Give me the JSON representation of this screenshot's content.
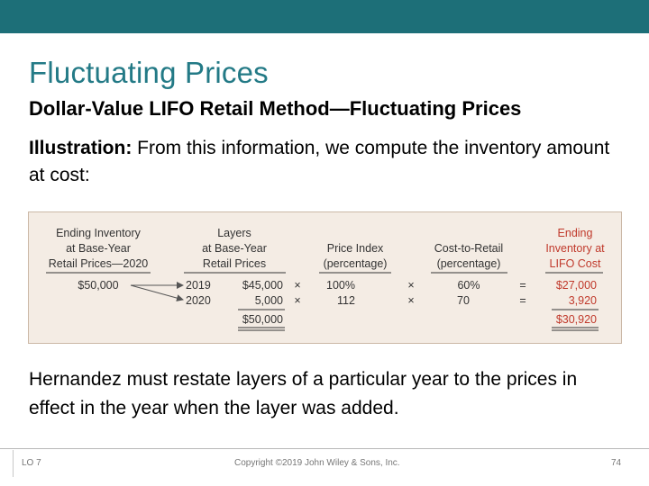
{
  "slide": {
    "title": "Fluctuating Prices",
    "subtitle": "Dollar-Value LIFO Retail Method—Fluctuating Prices",
    "intro_label": "Illustration:",
    "intro_text": " From this information, we compute the inventory amount at cost:",
    "conclusion": "Hernandez must restate layers of a particular year to the prices in effect in the year when the layer was added."
  },
  "table": {
    "headers": {
      "ending_inventory": [
        "Ending Inventory",
        "at Base-Year",
        "Retail Prices—2020"
      ],
      "layers": [
        "Layers",
        "at Base-Year",
        "Retail Prices"
      ],
      "price_index": [
        "Price Index",
        "(percentage)"
      ],
      "cost_to_retail": [
        "Cost-to-Retail",
        "(percentage)"
      ],
      "ending_lifo": [
        "Ending",
        "Inventory at",
        "LIFO Cost"
      ]
    },
    "ending_inventory_value": "$50,000",
    "rows": [
      {
        "year": "2019",
        "layer": "$45,000",
        "times1": "×",
        "index": "100%",
        "times2": "×",
        "ratio": "60%",
        "equals": "=",
        "cost": "$27,000"
      },
      {
        "year": "2020",
        "layer": "5,000",
        "times1": "×",
        "index": "112",
        "times2": "×",
        "ratio": "70",
        "equals": "=",
        "cost": "3,920"
      }
    ],
    "layer_total": "$50,000",
    "cost_total": "$30,920"
  },
  "footer": {
    "lo": "LO 7",
    "copyright": "Copyright ©2019 John Wiley & Sons, Inc.",
    "page": "74"
  },
  "colors": {
    "topbar": "#1d6f78",
    "title": "#237a86",
    "highlight_red": "#c0392b",
    "table_bg": "#f4ece4"
  }
}
